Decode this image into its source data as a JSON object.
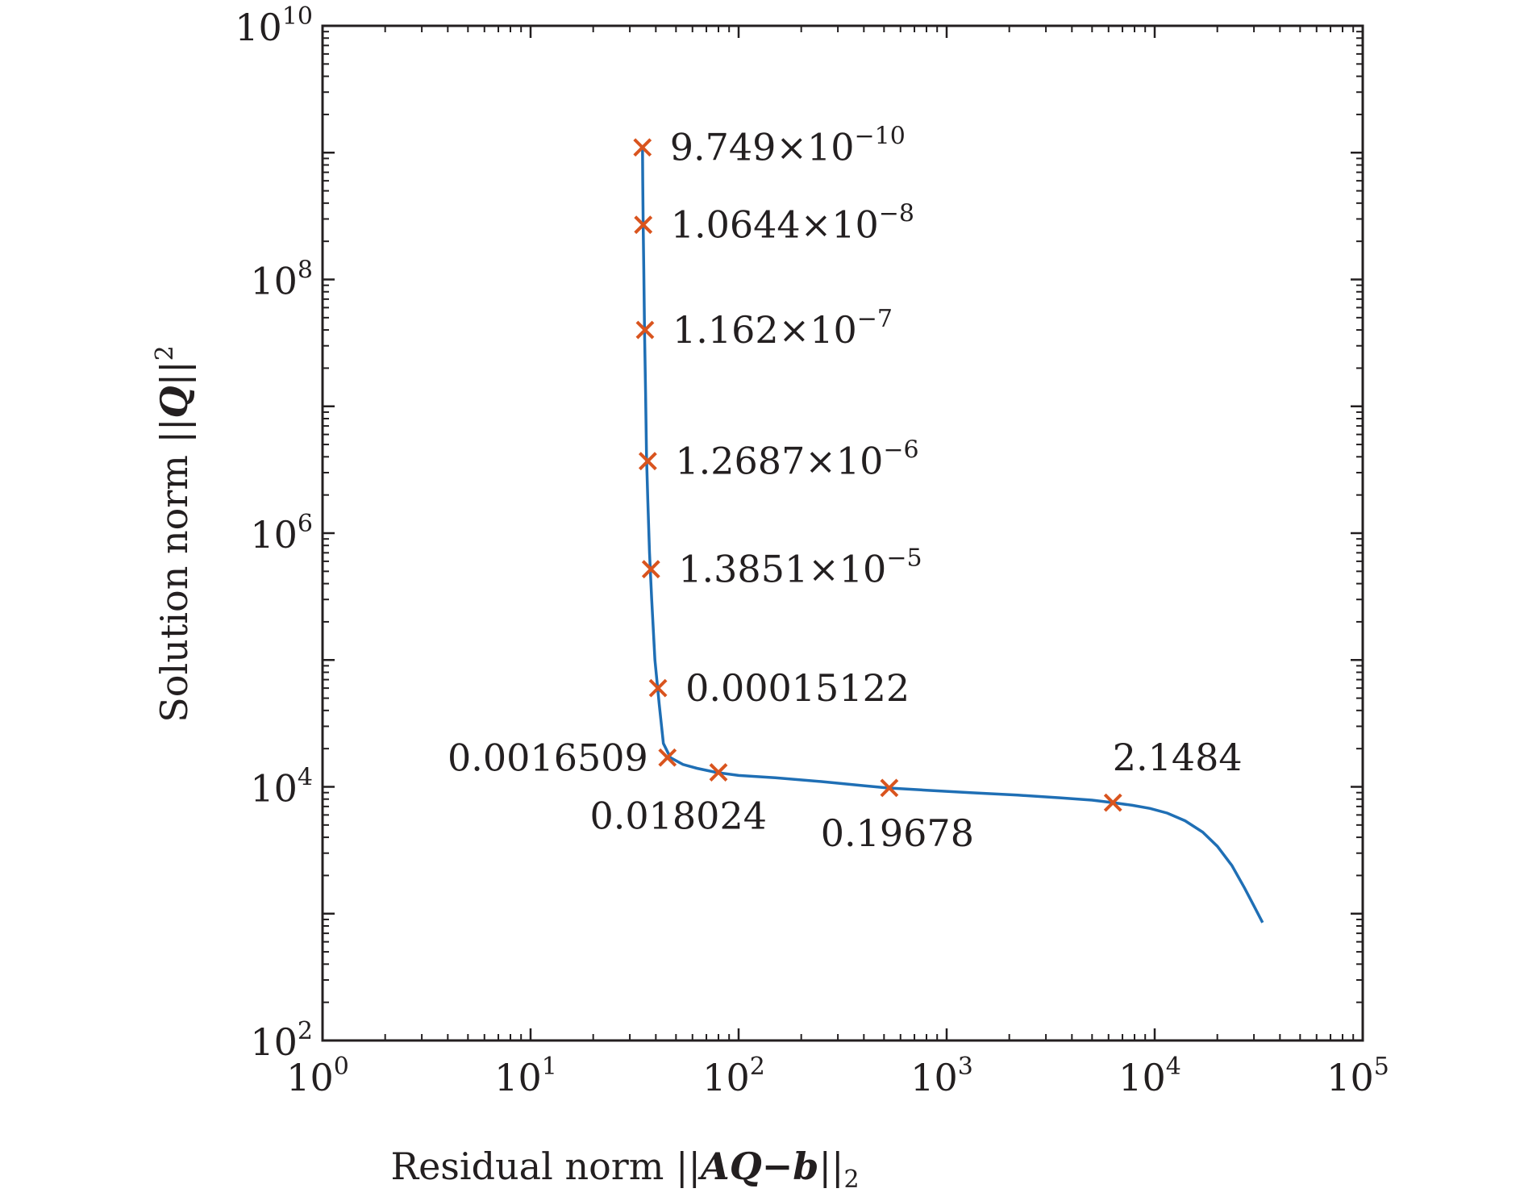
{
  "chart_data": {
    "type": "line",
    "xscale": "log",
    "yscale": "log",
    "xlim": [
      1,
      100000
    ],
    "ylim": [
      100,
      10000000000
    ],
    "xlabel": {
      "text": "Residual norm ||",
      "math": "AQ−b",
      "suffix": "||",
      "subscript": "2"
    },
    "ylabel": {
      "text": "Solution norm ||",
      "math": "Q",
      "suffix": "||",
      "superscript": "2"
    },
    "x_ticks": [
      {
        "value": 1,
        "base": "10",
        "exp": "0"
      },
      {
        "value": 10,
        "base": "10",
        "exp": "1"
      },
      {
        "value": 100,
        "base": "10",
        "exp": "2"
      },
      {
        "value": 1000,
        "base": "10",
        "exp": "3"
      },
      {
        "value": 10000,
        "base": "10",
        "exp": "4"
      },
      {
        "value": 100000,
        "base": "10",
        "exp": "5"
      }
    ],
    "y_ticks": [
      {
        "value": 100,
        "base": "10",
        "exp": "2"
      },
      {
        "value": 10000,
        "base": "10",
        "exp": "4"
      },
      {
        "value": 1000000,
        "base": "10",
        "exp": "6"
      },
      {
        "value": 100000000,
        "base": "10",
        "exp": "8"
      },
      {
        "value": 10000000000,
        "base": "10",
        "exp": "10"
      }
    ],
    "grid": false,
    "colors": {
      "curve": "#1f6fb5",
      "marker": "#d9541e",
      "text": "#231f20"
    },
    "curve": {
      "x": [
        34.5,
        34.6,
        34.8,
        35.0,
        35.3,
        35.7,
        36.1,
        36.6,
        37.3,
        38.2,
        39.6,
        41.5,
        43.5,
        47,
        54,
        63,
        78,
        100,
        150,
        250,
        400,
        520,
        800,
        1300,
        2200,
        3500,
        5000,
        6300,
        7800,
        9500,
        11500,
        14000,
        17000,
        20000,
        23500,
        27000,
        30000,
        33000
      ],
      "y": [
        1100000000,
        600000000,
        250000000,
        120000000,
        40000000,
        13000000,
        4000000,
        1800000,
        700000,
        300000,
        100000,
        45000,
        22000,
        17000,
        15000,
        14000,
        13000,
        12300,
        11800,
        11000,
        10200,
        9800,
        9400,
        9000,
        8600,
        8200,
        7850,
        7500,
        7150,
        6750,
        6200,
        5400,
        4400,
        3400,
        2400,
        1600,
        1150,
        850
      ]
    },
    "markers": [
      {
        "x": 34.5,
        "y": 1100000000,
        "label": "9.749",
        "exp": "−10",
        "pos": "right"
      },
      {
        "x": 34.8,
        "y": 270000000,
        "label": "1.0644",
        "exp": "−8",
        "pos": "right"
      },
      {
        "x": 35.5,
        "y": 40000000,
        "label": "1.162",
        "exp": "−7",
        "pos": "right"
      },
      {
        "x": 36.6,
        "y": 3700000,
        "label": "1.2687",
        "exp": "−6",
        "pos": "right"
      },
      {
        "x": 37.9,
        "y": 520000,
        "label": "1.3851",
        "exp": "−5",
        "pos": "right"
      },
      {
        "x": 41.0,
        "y": 60000,
        "label": "0.00015122",
        "exp": "",
        "pos": "right"
      },
      {
        "x": 45.5,
        "y": 17000,
        "label": "0.0016509",
        "exp": "",
        "pos": "left"
      },
      {
        "x": 80,
        "y": 13000,
        "label": "0.018024",
        "exp": "",
        "pos": "below-left"
      },
      {
        "x": 530,
        "y": 9800,
        "label": "0.19678",
        "exp": "",
        "pos": "below"
      },
      {
        "x": 6300,
        "y": 7500,
        "label": "2.1484",
        "exp": "",
        "pos": "above"
      }
    ],
    "times_symbol": "×",
    "times_base": "10"
  }
}
